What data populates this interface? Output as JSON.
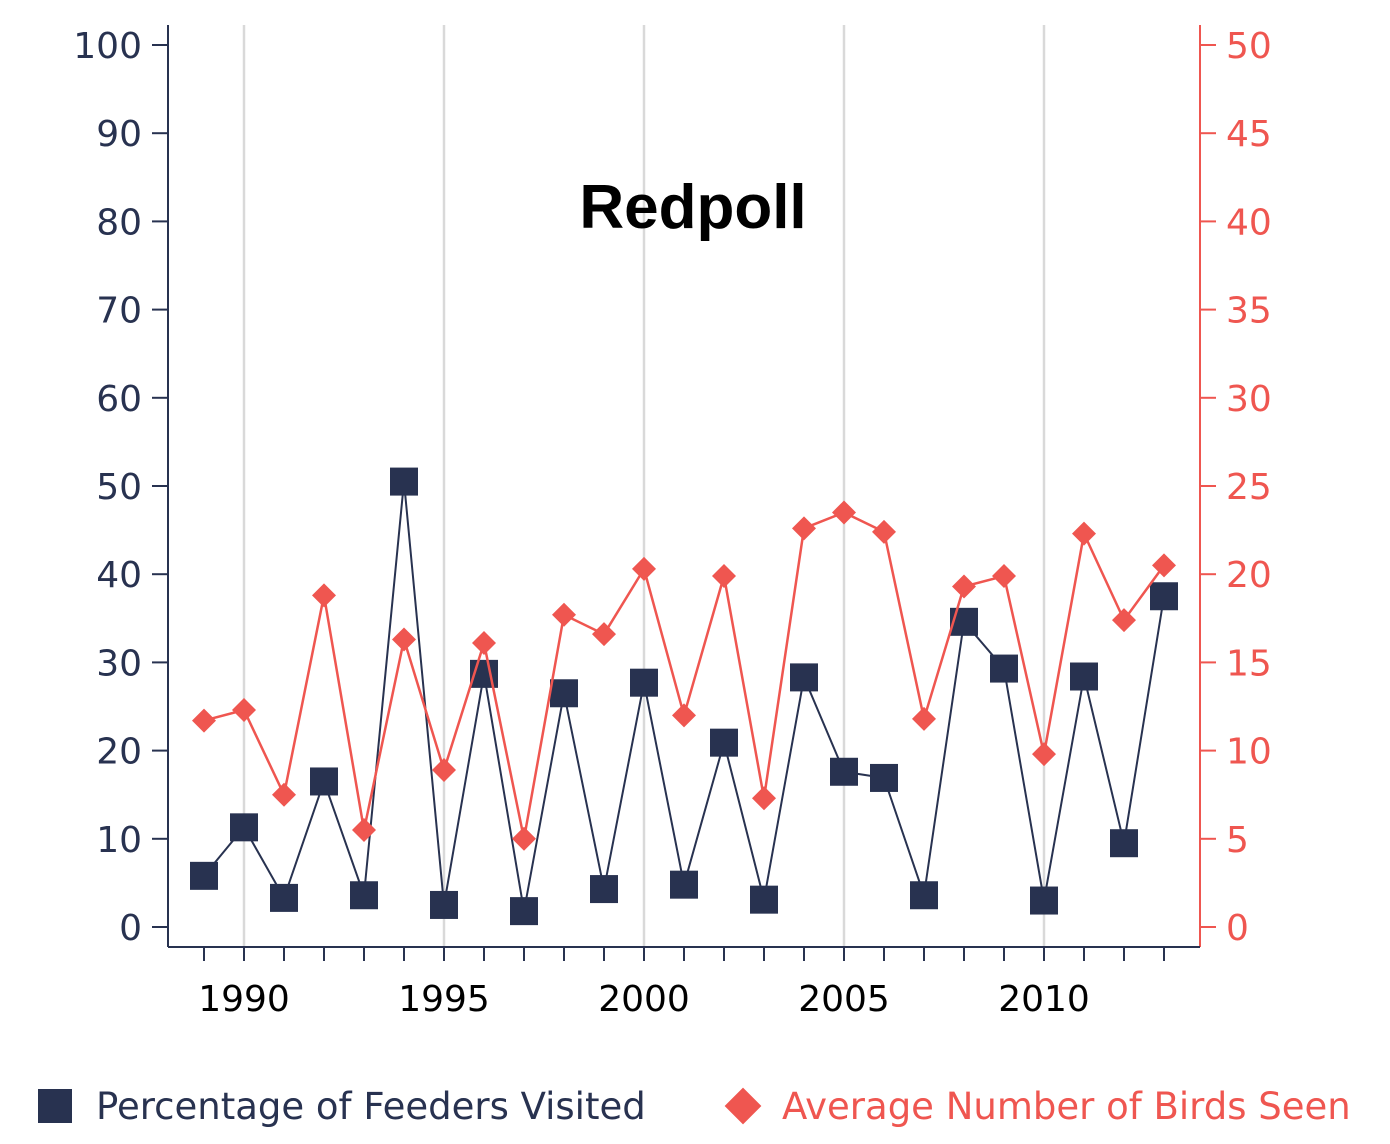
{
  "chart_data": {
    "type": "line",
    "title": "Redpoll",
    "x": [
      1989,
      1990,
      1991,
      1992,
      1993,
      1994,
      1995,
      1996,
      1997,
      1998,
      1999,
      2000,
      2001,
      2002,
      2003,
      2004,
      2005,
      2006,
      2007,
      2008,
      2009,
      2010,
      2011,
      2012,
      2013
    ],
    "x_ticks": [
      1990,
      1995,
      2000,
      2005,
      2010
    ],
    "xlim": [
      1988.1,
      2013.9
    ],
    "series": [
      {
        "name": "Percentage of Feeders Visited",
        "axis": "left",
        "marker": "square",
        "color": "#283250",
        "values": [
          5.8,
          11.3,
          3.3,
          16.5,
          3.6,
          50.5,
          2.5,
          28.7,
          1.8,
          26.5,
          4.3,
          27.7,
          4.8,
          20.9,
          3.1,
          28.3,
          17.6,
          16.9,
          3.6,
          34.6,
          29.3,
          3.0,
          28.4,
          9.5,
          37.5
        ]
      },
      {
        "name": "Average Number of Birds Seen",
        "axis": "right",
        "marker": "diamond",
        "color": "#ef5650",
        "values": [
          11.7,
          12.3,
          7.5,
          18.8,
          5.5,
          16.3,
          8.9,
          16.1,
          5.0,
          17.7,
          16.6,
          20.3,
          12.0,
          19.9,
          7.3,
          22.6,
          23.5,
          22.4,
          11.8,
          19.3,
          19.9,
          9.8,
          22.3,
          17.4,
          20.5
        ]
      }
    ],
    "y_left": {
      "ylim": [
        0,
        100
      ],
      "ticks": [
        0,
        10,
        20,
        30,
        40,
        50,
        60,
        70,
        80,
        90,
        100
      ],
      "color": "#283250"
    },
    "y_right": {
      "ylim": [
        0,
        50
      ],
      "ticks": [
        0,
        5,
        10,
        15,
        20,
        25,
        30,
        35,
        40,
        45,
        50
      ],
      "color": "#ef5650"
    },
    "grid": "vertical",
    "legend": "bottom"
  },
  "legend": {
    "feeders_label": "Percentage of Feeders Visited",
    "birds_label": "Average Number of Birds Seen"
  }
}
